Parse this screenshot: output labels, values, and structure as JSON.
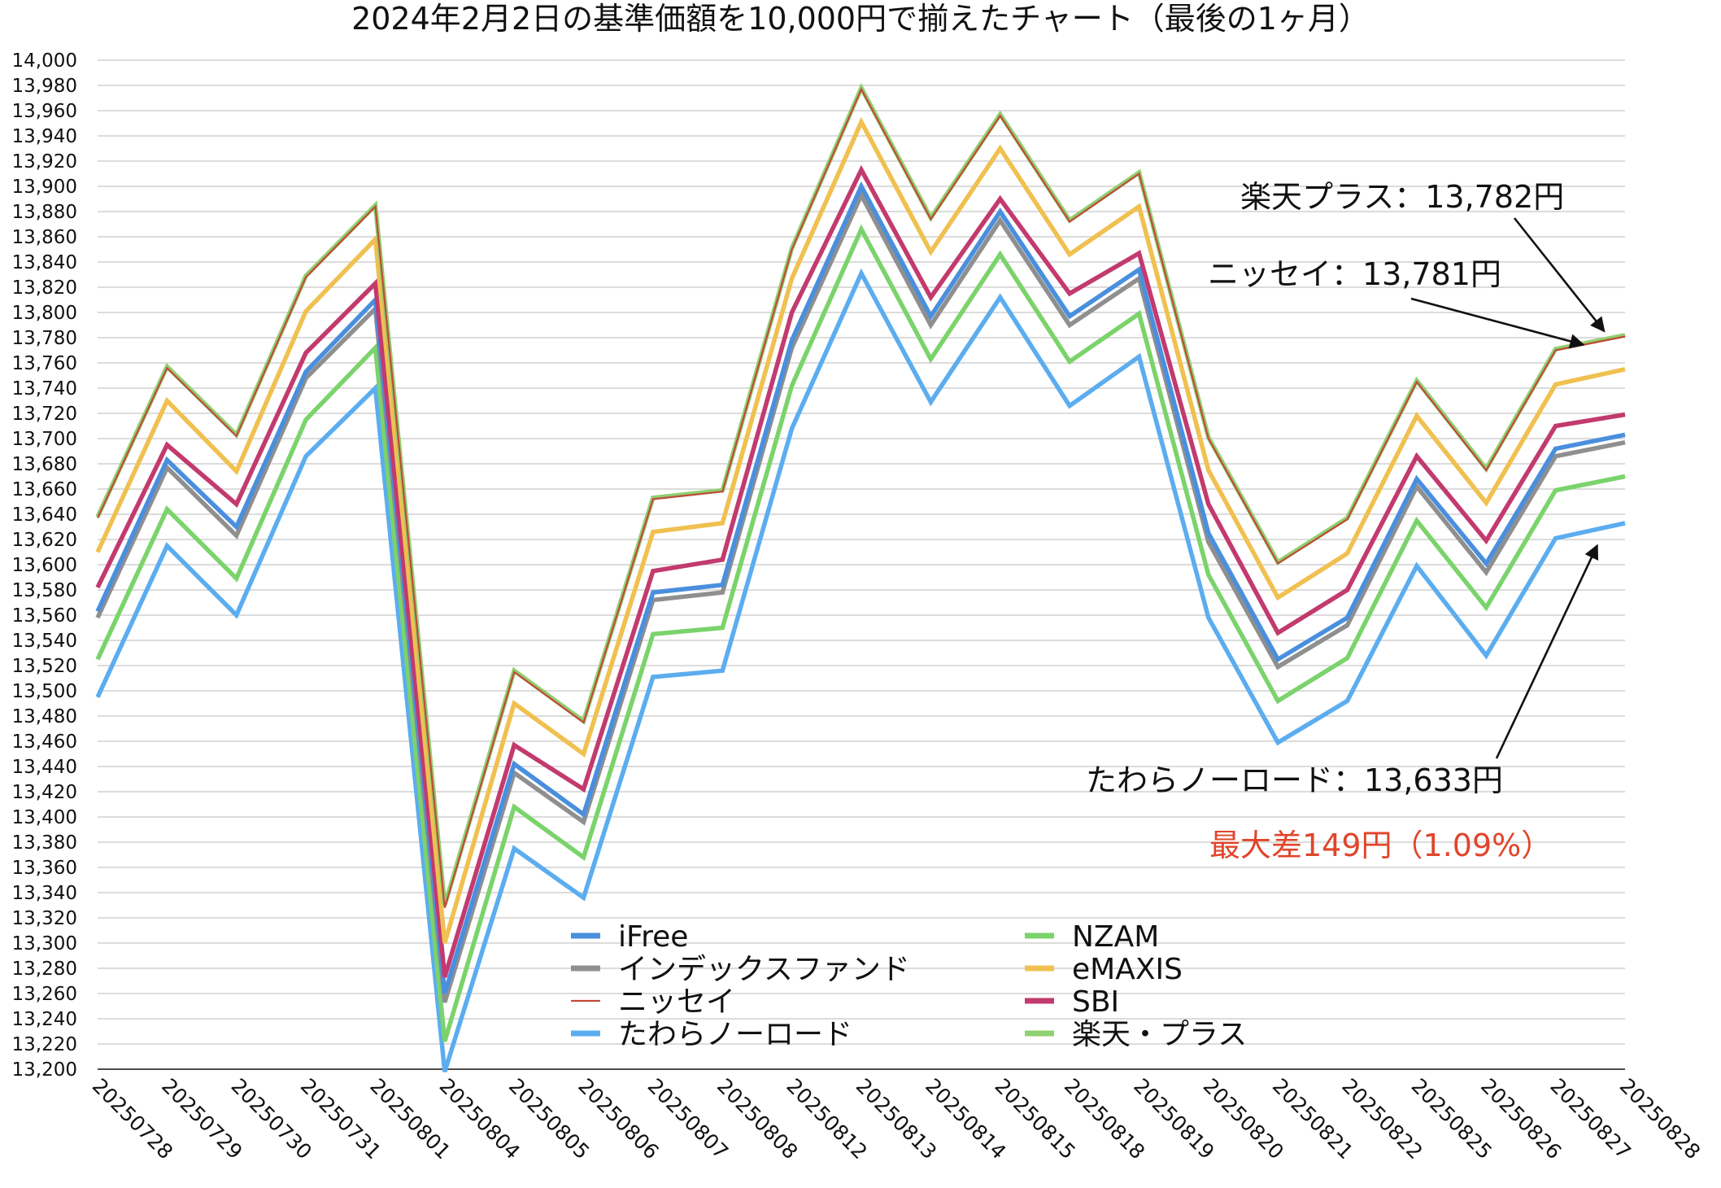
{
  "chart_data": {
    "type": "line",
    "title": "2024年2月2日の基準価額を10,000円で揃えたチャート（最後の1ヶ月）",
    "xlabel": "",
    "ylabel": "",
    "ylim": [
      13200,
      14000
    ],
    "ystep": 20,
    "grid": true,
    "legend_position": "bottom-center",
    "categories": [
      "20250728",
      "20250729",
      "20250730",
      "20250731",
      "20250801",
      "20250804",
      "20250805",
      "20250806",
      "20250807",
      "20250808",
      "20250812",
      "20250813",
      "20250814",
      "20250815",
      "20250818",
      "20250819",
      "20250820",
      "20250821",
      "20250822",
      "20250825",
      "20250826",
      "20250827",
      "20250828"
    ],
    "series": [
      {
        "name": "iFree",
        "color": "#4a8fde",
        "values": [
          13563,
          13683,
          13630,
          13753,
          13810,
          13260,
          13442,
          13402,
          13578,
          13584,
          13778,
          13900,
          13797,
          13880,
          13797,
          13834,
          13625,
          13525,
          13558,
          13668,
          13601,
          13692,
          13703
        ]
      },
      {
        "name": "インデックスファンド",
        "color": "#8f8f8f",
        "values": [
          13558,
          13677,
          13623,
          13748,
          13803,
          13253,
          13435,
          13396,
          13572,
          13578,
          13772,
          13893,
          13790,
          13873,
          13790,
          13827,
          13618,
          13519,
          13552,
          13662,
          13594,
          13686,
          13697
        ]
      },
      {
        "name": "ニッセイ",
        "color": "#c24a3a",
        "values": [
          13637,
          13756,
          13702,
          13828,
          13884,
          13328,
          13515,
          13475,
          13652,
          13658,
          13850,
          13977,
          13874,
          13956,
          13872,
          13910,
          13700,
          13601,
          13636,
          13745,
          13675,
          13770,
          13781
        ]
      },
      {
        "name": "たわらノーロード",
        "color": "#5badef",
        "values": [
          13495,
          13615,
          13560,
          13686,
          13740,
          13198,
          13375,
          13336,
          13511,
          13516,
          13708,
          13831,
          13729,
          13812,
          13726,
          13765,
          13558,
          13459,
          13492,
          13599,
          13528,
          13621,
          13633
        ]
      },
      {
        "name": "NZAM",
        "color": "#7bd36b",
        "values": [
          13525,
          13644,
          13589,
          13715,
          13772,
          13222,
          13408,
          13368,
          13545,
          13550,
          13742,
          13866,
          13763,
          13846,
          13761,
          13799,
          13592,
          13492,
          13526,
          13635,
          13566,
          13659,
          13670
        ]
      },
      {
        "name": "eMAXIS",
        "color": "#f0c050",
        "values": [
          13610,
          13730,
          13674,
          13801,
          13858,
          13300,
          13490,
          13450,
          13626,
          13633,
          13827,
          13951,
          13848,
          13930,
          13846,
          13884,
          13675,
          13574,
          13609,
          13718,
          13649,
          13743,
          13755
        ]
      },
      {
        "name": "SBI",
        "color": "#c23a6e",
        "values": [
          13582,
          13695,
          13648,
          13768,
          13823,
          13273,
          13457,
          13422,
          13595,
          13604,
          13800,
          13913,
          13812,
          13890,
          13815,
          13847,
          13648,
          13546,
          13580,
          13686,
          13619,
          13710,
          13719
        ]
      },
      {
        "name": "楽天・プラス",
        "color": "#8fd070",
        "values": [
          13638,
          13757,
          13703,
          13829,
          13885,
          13330,
          13516,
          13476,
          13653,
          13659,
          13851,
          13978,
          13875,
          13957,
          13873,
          13911,
          13701,
          13602,
          13637,
          13746,
          13676,
          13771,
          13782
        ]
      }
    ],
    "annotations": [
      {
        "text": "楽天プラス：13,782円",
        "series": "楽天・プラス",
        "color": "#111111"
      },
      {
        "text": "ニッセイ：13,781円",
        "series": "ニッセイ",
        "color": "#111111"
      },
      {
        "text": "たわらノーロード：13,633円",
        "series": "たわらノーロード",
        "color": "#111111"
      },
      {
        "text": "最大差149円（1.09%）",
        "color": "#e0452b"
      }
    ]
  }
}
